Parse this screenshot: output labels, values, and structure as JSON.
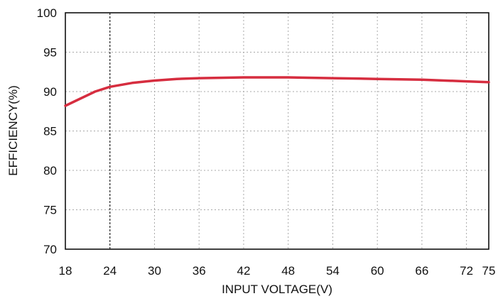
{
  "chart_data": {
    "type": "line",
    "title": "",
    "xlabel": "INPUT VOLTAGE(V)",
    "ylabel": "EFFICIENCY(%)",
    "xlim": [
      18,
      75
    ],
    "ylim": [
      70,
      100
    ],
    "xticks": [
      18,
      24,
      30,
      36,
      42,
      48,
      54,
      60,
      66,
      72,
      75
    ],
    "yticks": [
      70,
      75,
      80,
      85,
      90,
      95,
      100
    ],
    "grid": true,
    "legend": "none",
    "series": [
      {
        "color": "#d62d3f",
        "x": [
          18,
          20,
          22,
          24,
          27,
          30,
          33,
          36,
          42,
          48,
          54,
          60,
          66,
          72,
          75
        ],
        "y": [
          88.2,
          89.1,
          90.0,
          90.6,
          91.1,
          91.4,
          91.6,
          91.7,
          91.8,
          91.8,
          91.7,
          91.6,
          91.5,
          91.3,
          91.2
        ]
      }
    ]
  }
}
